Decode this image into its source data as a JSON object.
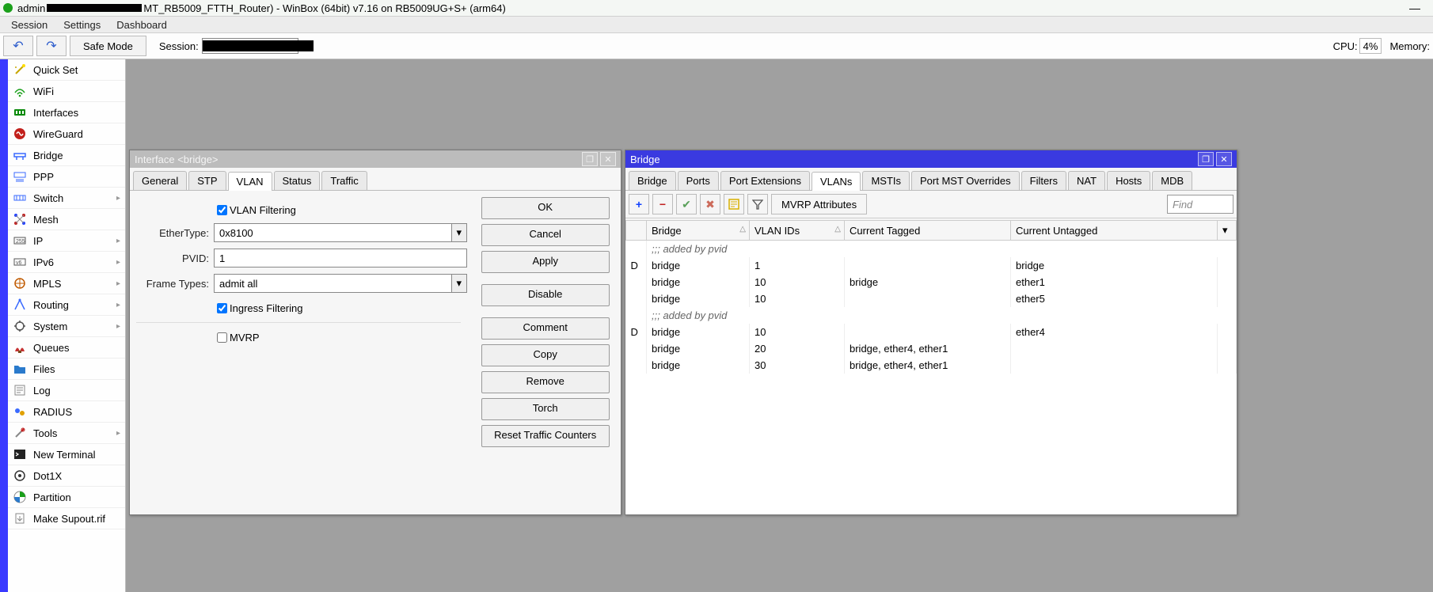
{
  "titlebar": {
    "prefix": "admin",
    "suffix": "MT_RB5009_FTTH_Router) - WinBox (64bit) v7.16 on RB5009UG+S+ (arm64)"
  },
  "menubar": [
    "Session",
    "Settings",
    "Dashboard"
  ],
  "toolbar": {
    "safe_mode": "Safe Mode",
    "session_label": "Session:",
    "cpu_label": "CPU:",
    "cpu_value": "4%",
    "mem_label": "Memory:"
  },
  "sidebar": [
    {
      "label": "Quick Set",
      "icon": "wand",
      "color": "#c7a600"
    },
    {
      "label": "WiFi",
      "icon": "wifi",
      "color": "#1aa01a"
    },
    {
      "label": "Interfaces",
      "icon": "iface",
      "color": "#0a8a0a"
    },
    {
      "label": "WireGuard",
      "icon": "wg",
      "color": "#c2201c"
    },
    {
      "label": "Bridge",
      "icon": "bridge",
      "color": "#3a6aff"
    },
    {
      "label": "PPP",
      "icon": "ppp",
      "color": "#3a6aff"
    },
    {
      "label": "Switch",
      "icon": "switch",
      "color": "#3a6aff",
      "arrow": true
    },
    {
      "label": "Mesh",
      "icon": "mesh",
      "color": "#2040ff"
    },
    {
      "label": "IP",
      "icon": "ip",
      "color": "#555",
      "arrow": true
    },
    {
      "label": "IPv6",
      "icon": "ipv6",
      "color": "#555",
      "arrow": true
    },
    {
      "label": "MPLS",
      "icon": "mpls",
      "color": "#c05a00",
      "arrow": true
    },
    {
      "label": "Routing",
      "icon": "routing",
      "color": "#3a6aff",
      "arrow": true
    },
    {
      "label": "System",
      "icon": "system",
      "color": "#555",
      "arrow": true
    },
    {
      "label": "Queues",
      "icon": "queues",
      "color": "#c01c1c"
    },
    {
      "label": "Files",
      "icon": "files",
      "color": "#2a7acc"
    },
    {
      "label": "Log",
      "icon": "log",
      "color": "#888"
    },
    {
      "label": "RADIUS",
      "icon": "radius",
      "color": "#e0a000"
    },
    {
      "label": "Tools",
      "icon": "tools",
      "color": "#888",
      "arrow": true
    },
    {
      "label": "New Terminal",
      "icon": "terminal",
      "color": "#222"
    },
    {
      "label": "Dot1X",
      "icon": "dot1x",
      "color": "#333"
    },
    {
      "label": "Partition",
      "icon": "partition",
      "color": "#1aa01a"
    },
    {
      "label": "Make Supout.rif",
      "icon": "supout",
      "color": "#888"
    }
  ],
  "win_iface": {
    "title": "Interface <bridge>",
    "tabs": [
      "General",
      "STP",
      "VLAN",
      "Status",
      "Traffic"
    ],
    "active_tab": 2,
    "form": {
      "vlan_filtering_label": "VLAN Filtering",
      "vlan_filtering": true,
      "ethertype_label": "EtherType:",
      "ethertype": "0x8100",
      "pvid_label": "PVID:",
      "pvid": "1",
      "frametypes_label": "Frame Types:",
      "frametypes": "admit all",
      "ingress_label": "Ingress Filtering",
      "ingress": true,
      "mvrp_label": "MVRP",
      "mvrp": false
    },
    "buttons": [
      "OK",
      "Cancel",
      "Apply",
      "Disable",
      "Comment",
      "Copy",
      "Remove",
      "Torch",
      "Reset Traffic Counters"
    ]
  },
  "win_bridge": {
    "title": "Bridge",
    "tabs": [
      "Bridge",
      "Ports",
      "Port Extensions",
      "VLANs",
      "MSTIs",
      "Port MST Overrides",
      "Filters",
      "NAT",
      "Hosts",
      "MDB"
    ],
    "active_tab": 3,
    "toolbar_button": "MVRP Attributes",
    "find_placeholder": "Find",
    "columns": [
      "Bridge",
      "VLAN IDs",
      "Current Tagged",
      "Current Untagged"
    ],
    "rows": [
      {
        "group": ";;; added by pvid"
      },
      {
        "flag": "D",
        "bridge": "bridge",
        "vlan": "1",
        "tagged": "",
        "untagged": "bridge"
      },
      {
        "flag": "",
        "bridge": "bridge",
        "vlan": "10",
        "tagged": "bridge",
        "untagged": "ether1"
      },
      {
        "flag": "",
        "bridge": "bridge",
        "vlan": "10",
        "tagged": "",
        "untagged": "ether5"
      },
      {
        "group": ";;; added by pvid"
      },
      {
        "flag": "D",
        "bridge": "bridge",
        "vlan": "10",
        "tagged": "",
        "untagged": "ether4"
      },
      {
        "flag": "",
        "bridge": "bridge",
        "vlan": "20",
        "tagged": "bridge, ether4, ether1",
        "untagged": ""
      },
      {
        "flag": "",
        "bridge": "bridge",
        "vlan": "30",
        "tagged": "bridge, ether4, ether1",
        "untagged": ""
      }
    ]
  }
}
